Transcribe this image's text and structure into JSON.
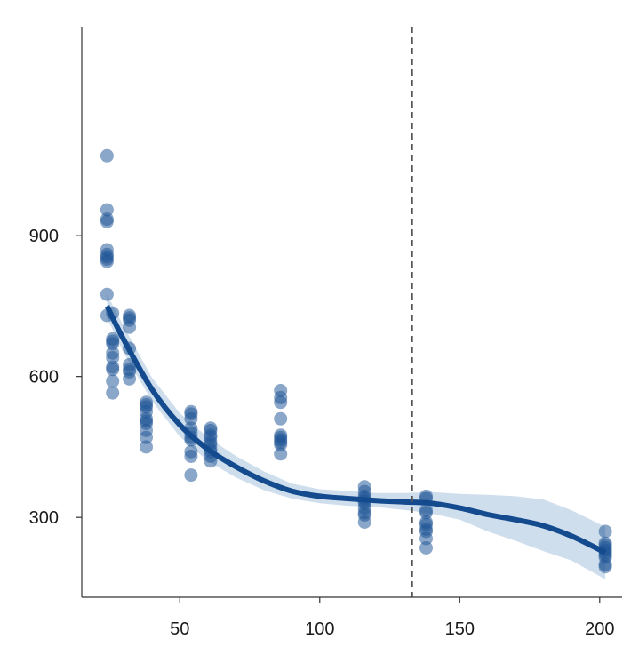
{
  "chart_data": {
    "type": "scatter",
    "title": "",
    "xlabel": "",
    "ylabel": "",
    "xlim": [
      15,
      208
    ],
    "ylim": [
      130,
      1345
    ],
    "x_ticks": [
      50,
      100,
      150,
      200
    ],
    "y_ticks": [
      300,
      600,
      900
    ],
    "grid": false,
    "legend": "none",
    "colors": {
      "points": "#1f5596",
      "line": "#134b8e",
      "band": "#a8c3dd",
      "reference_line": "#555555"
    },
    "reference_line_x": 133,
    "points": {
      "x": [
        24,
        24,
        24,
        24,
        24,
        24,
        24,
        24,
        24,
        24,
        24,
        26,
        26,
        26,
        26,
        26,
        26,
        26,
        26,
        26,
        26,
        32,
        32,
        32,
        32,
        32,
        32,
        32,
        32,
        32,
        38,
        38,
        38,
        38,
        38,
        38,
        38,
        38,
        38,
        38,
        54,
        54,
        54,
        54,
        54,
        54,
        54,
        54,
        54,
        54,
        61,
        61,
        61,
        61,
        61,
        61,
        61,
        61,
        61,
        61,
        86,
        86,
        86,
        86,
        86,
        86,
        86,
        86,
        86,
        86,
        116,
        116,
        116,
        116,
        116,
        116,
        116,
        116,
        116,
        116,
        138,
        138,
        138,
        138,
        138,
        138,
        138,
        138,
        138,
        138,
        202,
        202,
        202,
        202,
        202,
        202,
        202,
        202,
        202,
        202
      ],
      "y": [
        1070,
        955,
        935,
        930,
        870,
        860,
        855,
        850,
        845,
        775,
        730,
        735,
        675,
        670,
        650,
        640,
        620,
        615,
        590,
        565,
        680,
        730,
        725,
        720,
        705,
        660,
        625,
        615,
        595,
        610,
        545,
        540,
        525,
        510,
        505,
        500,
        485,
        470,
        450,
        535,
        525,
        520,
        490,
        480,
        470,
        465,
        440,
        430,
        390,
        510,
        490,
        485,
        475,
        460,
        455,
        445,
        440,
        430,
        420,
        470,
        570,
        555,
        545,
        510,
        475,
        470,
        460,
        455,
        435,
        465,
        365,
        355,
        345,
        340,
        330,
        320,
        310,
        305,
        290,
        335,
        345,
        340,
        315,
        310,
        285,
        275,
        270,
        255,
        235,
        290,
        270,
        245,
        240,
        235,
        230,
        225,
        220,
        215,
        195,
        200
      ],
      "opacity": 0.52
    },
    "fit": {
      "x": [
        24,
        30,
        40,
        50,
        60,
        70,
        80,
        90,
        100,
        110,
        120,
        130,
        140,
        150,
        160,
        170,
        180,
        190,
        202
      ],
      "y": [
        750,
        678,
        573,
        497,
        445,
        408,
        378,
        356,
        345,
        340,
        336,
        333,
        330,
        320,
        306,
        295,
        282,
        260,
        225
      ],
      "lower": [
        725,
        650,
        548,
        472,
        420,
        385,
        358,
        340,
        330,
        325,
        322,
        316,
        308,
        295,
        270,
        250,
        228,
        208,
        168
      ],
      "upper": [
        775,
        706,
        598,
        522,
        470,
        431,
        398,
        372,
        360,
        356,
        352,
        352,
        354,
        350,
        348,
        345,
        338,
        315,
        280
      ]
    }
  }
}
